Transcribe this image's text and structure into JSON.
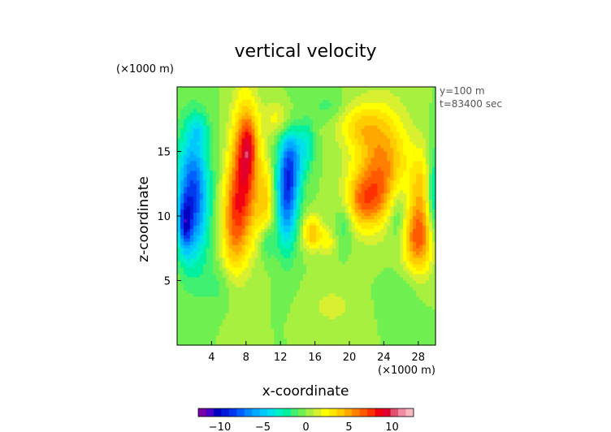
{
  "chart_data": {
    "type": "heatmap",
    "title": "vertical velocity",
    "xlabel": "x-coordinate",
    "ylabel": "z-coordinate",
    "x_unit": "(×1000 m)",
    "y_unit": "(×1000 m)",
    "xlim": [
      0,
      30
    ],
    "ylim": [
      0,
      20
    ],
    "x_ticks": [
      4,
      8,
      12,
      16,
      20,
      24,
      28
    ],
    "y_ticks": [
      5,
      10,
      15
    ],
    "annotations": [
      "y=100 m",
      "t=83400 sec"
    ],
    "colorbar": {
      "min": -12.5,
      "max": 12.5,
      "ticks": [
        -10,
        -5,
        0,
        5,
        10
      ],
      "colors": [
        "#7a00a8",
        "#4a00c8",
        "#0000c0",
        "#0018d8",
        "#0038f0",
        "#0060ff",
        "#0088ff",
        "#00aaff",
        "#00c8ff",
        "#00e0e8",
        "#00f0c8",
        "#00f0a0",
        "#40f070",
        "#70f050",
        "#a8f040",
        "#d8f030",
        "#ffff00",
        "#ffe600",
        "#ffcc00",
        "#ffa800",
        "#ff8000",
        "#ff5a00",
        "#ff3000",
        "#f00010",
        "#e00030",
        "#e05070",
        "#f08ca0",
        "#f8b8c0"
      ]
    },
    "features": [
      {
        "x": 1.8,
        "z": 11.5,
        "w": -8.5,
        "sx": 1.3,
        "sz": 3.5
      },
      {
        "x": 0.9,
        "z": 9.3,
        "w": -5,
        "sx": 0.5,
        "sz": 1.4
      },
      {
        "x": 2.5,
        "z": 16.8,
        "w": -2,
        "sx": 0.8,
        "sz": 0.8
      },
      {
        "x": 6.5,
        "z": 9.5,
        "w": 5,
        "sx": 1.0,
        "sz": 3.0
      },
      {
        "x": 7.9,
        "z": 13.5,
        "w": 7.5,
        "sx": 1.1,
        "sz": 3.8
      },
      {
        "x": 8.3,
        "z": 15.5,
        "w": 3,
        "sx": 0.7,
        "sz": 1.5
      },
      {
        "x": 10.3,
        "z": 11.2,
        "w": 3.5,
        "sx": 0.8,
        "sz": 2.2
      },
      {
        "x": 10.5,
        "z": 8.0,
        "w": -2.5,
        "sx": 0.6,
        "sz": 1.0
      },
      {
        "x": 12.7,
        "z": 11.5,
        "w": -7.5,
        "sx": 0.9,
        "sz": 2.8
      },
      {
        "x": 13.5,
        "z": 14.5,
        "w": -4.5,
        "sx": 1.0,
        "sz": 2.0
      },
      {
        "x": 15.2,
        "z": 15.5,
        "w": -2.5,
        "sx": 0.6,
        "sz": 1.2
      },
      {
        "x": 15.7,
        "z": 8.7,
        "w": 4.5,
        "sx": 0.8,
        "sz": 0.9
      },
      {
        "x": 17.5,
        "z": 8.0,
        "w": 2,
        "sx": 0.6,
        "sz": 0.8
      },
      {
        "x": 19.5,
        "z": 9.5,
        "w": -2,
        "sx": 0.7,
        "sz": 1.2
      },
      {
        "x": 21.3,
        "z": 11.0,
        "w": 3.5,
        "sx": 1.4,
        "sz": 1.5
      },
      {
        "x": 23.8,
        "z": 14.0,
        "w": 5.5,
        "sx": 2.2,
        "sz": 3.0
      },
      {
        "x": 23.0,
        "z": 11.5,
        "w": 2,
        "sx": 1.8,
        "sz": 1.5
      },
      {
        "x": 25.6,
        "z": 10.3,
        "w": -3,
        "sx": 0.9,
        "sz": 1.8
      },
      {
        "x": 28.0,
        "z": 8.3,
        "w": 6.5,
        "sx": 1.3,
        "sz": 1.9
      },
      {
        "x": 28.4,
        "z": 12.5,
        "w": 3,
        "sx": 0.9,
        "sz": 2.0
      },
      {
        "x": 29.8,
        "z": 11.5,
        "w": -4,
        "sx": 0.6,
        "sz": 2.6
      },
      {
        "x": 12.0,
        "z": 17.5,
        "w": 2.5,
        "sx": 1.3,
        "sz": 1.0
      },
      {
        "x": 21.0,
        "z": 17.0,
        "w": 2.5,
        "sx": 1.8,
        "sz": 1.2
      },
      {
        "x": 17.5,
        "z": 18.5,
        "w": -1.2,
        "sx": 1.5,
        "sz": 0.8
      },
      {
        "x": 5.0,
        "z": 4.5,
        "w": -1.2,
        "sx": 1.5,
        "sz": 1.2
      },
      {
        "x": 18.0,
        "z": 3.0,
        "w": 1.2,
        "sx": 2.0,
        "sz": 1.2
      },
      {
        "x": 26.0,
        "z": 4.0,
        "w": -1,
        "sx": 1.5,
        "sz": 1.2
      }
    ]
  }
}
